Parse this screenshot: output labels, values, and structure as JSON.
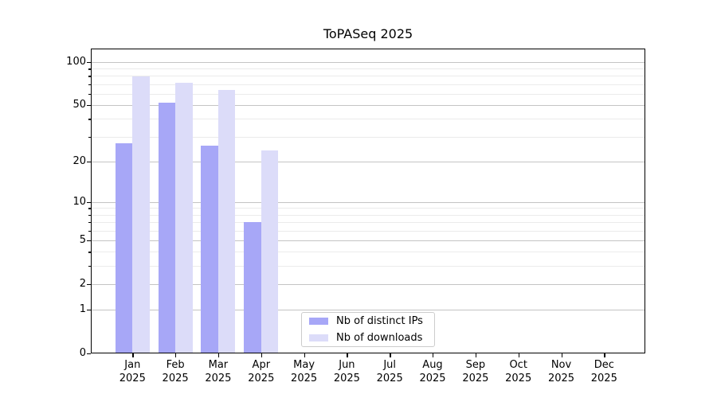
{
  "chart_data": {
    "type": "bar",
    "title": "ToPASeq 2025",
    "x_categories": [
      "Jan",
      "Feb",
      "Mar",
      "Apr",
      "May",
      "Jun",
      "Jul",
      "Aug",
      "Sep",
      "Oct",
      "Nov",
      "Dec"
    ],
    "x_sublabel": "2025",
    "series": [
      {
        "name": "Nb of distinct IPs",
        "color": "#a7a7f7",
        "values": [
          27,
          52,
          26,
          7,
          0,
          0,
          0,
          0,
          0,
          0,
          0,
          0
        ]
      },
      {
        "name": "Nb of downloads",
        "color": "#dcdcf9",
        "values": [
          79,
          72,
          64,
          24,
          0,
          0,
          0,
          0,
          0,
          0,
          0,
          0
        ]
      }
    ],
    "yscale": "log1p",
    "ylim": [
      0,
      124
    ],
    "yticks": [
      0,
      1,
      2,
      5,
      10,
      20,
      50,
      100
    ],
    "yticks_minor": [
      3,
      4,
      6,
      7,
      8,
      9,
      30,
      40,
      60,
      70,
      80,
      90
    ],
    "grid": true,
    "legend_position": "lower center",
    "colors": {
      "major_grid": "#c4c4c4",
      "minor_grid": "#ebebeb",
      "spine": "#000000",
      "background": "#ffffff"
    }
  }
}
